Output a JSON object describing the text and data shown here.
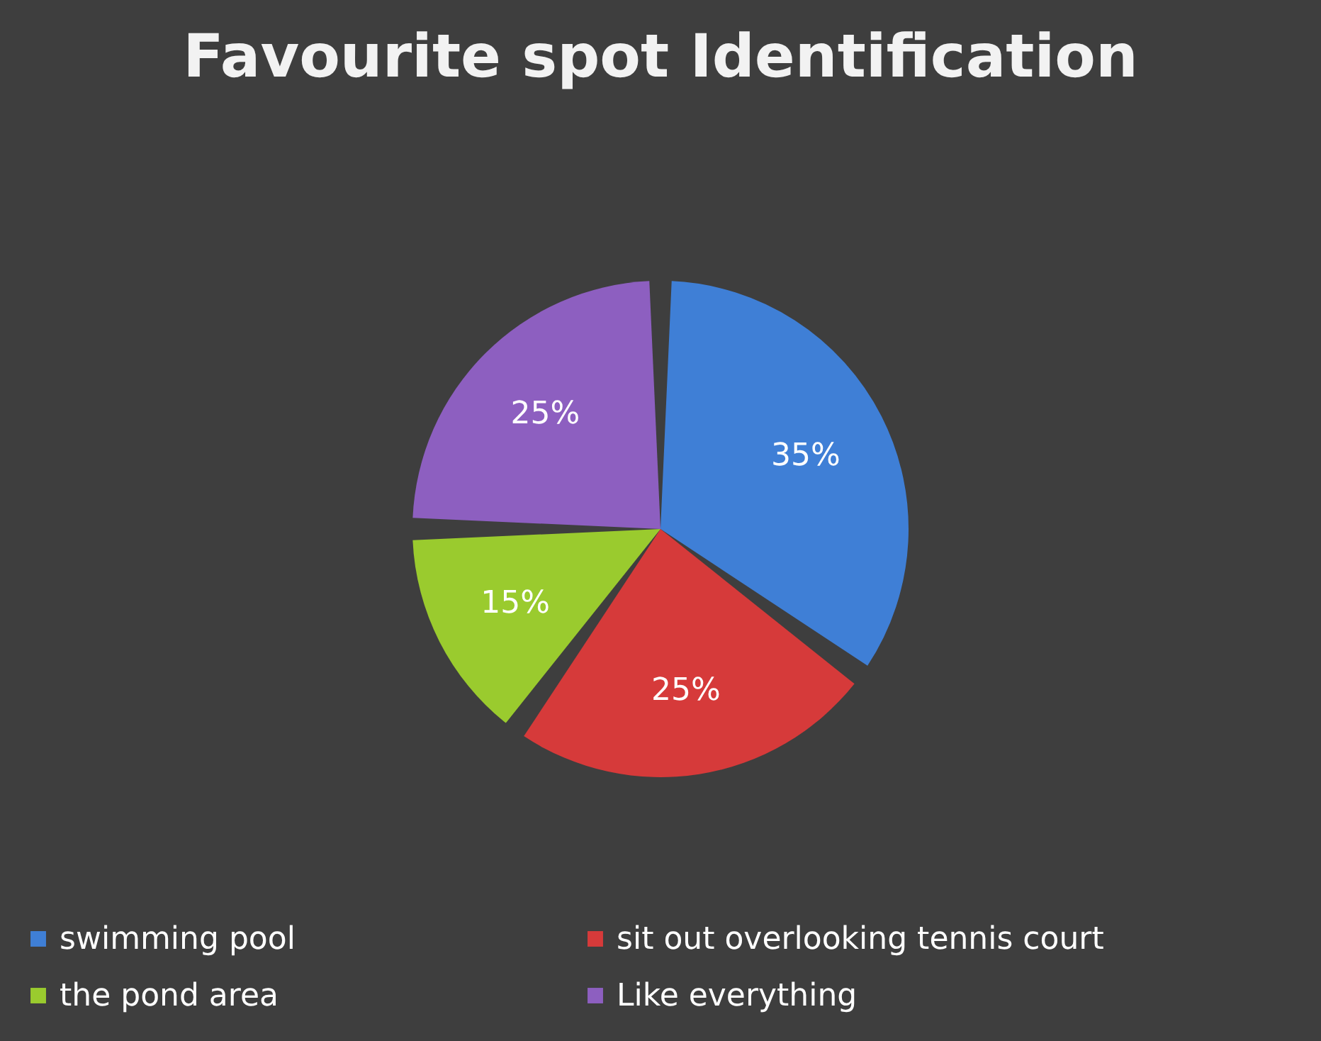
{
  "chart_data": {
    "type": "pie",
    "title": "Favourite spot Identification",
    "categories": [
      "swimming pool",
      "sit out overlooking tennis  court",
      "the pond area",
      "Like everything"
    ],
    "values": [
      35,
      25,
      15,
      25
    ],
    "colors": [
      "#3f7fd6",
      "#d63a3a",
      "#9acb2e",
      "#8d5fc0"
    ],
    "value_labels": [
      "35%",
      "25%",
      "15%",
      "25%"
    ],
    "legend": "bottom"
  }
}
